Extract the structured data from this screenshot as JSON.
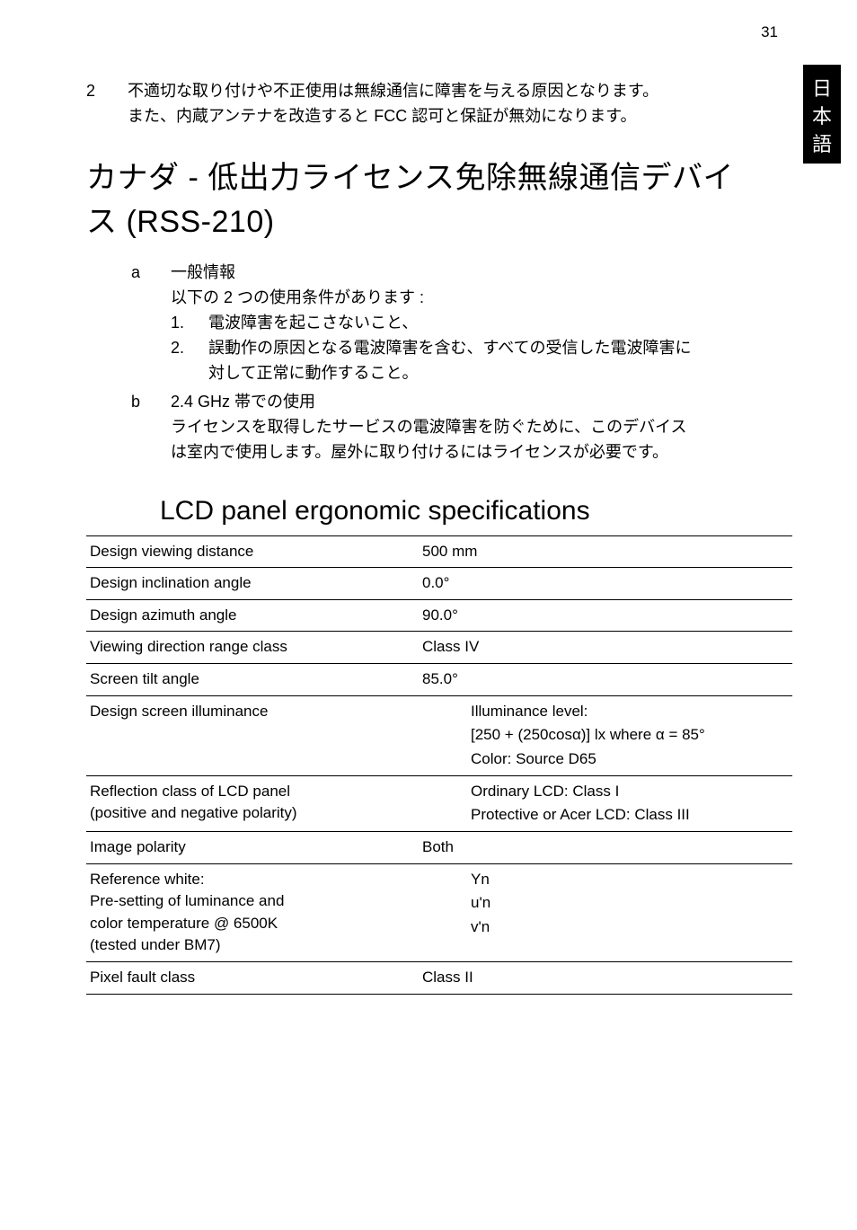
{
  "page_number": "31",
  "side_tab": "日本語",
  "intro_item": {
    "num": "2",
    "text_line1": "不適切な取り付けや不正使用は無線通信に障害を与える原因となります。",
    "text_line2": "また、内蔵アンテナを改造すると FCC 認可と保証が無効になります。"
  },
  "h1_line1": "カナダ - 低出力ライセンス免除無線通信デバイ",
  "h1_line2": "ス (RSS-210)",
  "letter_a": {
    "letter": "a",
    "title": "一般情報",
    "intro": "以下の 2 つの使用条件があります :",
    "item1_num": "1.",
    "item1_text": "電波障害を起こさないこと、",
    "item2_num": "2.",
    "item2_text_l1": "誤動作の原因となる電波障害を含む、すべての受信した電波障害に",
    "item2_text_l2": "対して正常に動作すること。"
  },
  "letter_b": {
    "letter": "b",
    "title": "2.4 GHz 帯での使用",
    "line1": "ライセンスを取得したサービスの電波障害を防ぐために、このデバイス",
    "line2": "は室内で使用します。屋外に取り付けるにはライセンスが必要です。"
  },
  "h2": "LCD panel ergonomic specifications",
  "table": {
    "rows": [
      {
        "label": "Design viewing distance",
        "value": "500 mm"
      },
      {
        "label": "Design inclination angle",
        "value": "0.0°"
      },
      {
        "label": "Design azimuth angle",
        "value": "90.0°"
      },
      {
        "label": "Viewing direction range class",
        "value": "Class IV"
      },
      {
        "label": "Screen tilt angle",
        "value": "85.0°"
      }
    ],
    "illum": {
      "label": "Design screen illuminance",
      "v1": "Illuminance level:",
      "v2": "[250 + (250cosα)] lx where α = 85°",
      "v3": "Color: Source D65"
    },
    "refl": {
      "label1": "Reflection class of LCD panel",
      "label2": "(positive and negative polarity)",
      "v1": "Ordinary LCD: Class I",
      "v2": "Protective or Acer LCD: Class III"
    },
    "imgpol": {
      "label": "Image polarity",
      "value": "Both"
    },
    "refwhite": {
      "l1": "Reference white:",
      "l2": "Pre-setting of luminance and",
      "l3": "color temperature @ 6500K",
      "l4": "(tested under BM7)",
      "v1": "Yn",
      "v2": "u'n",
      "v3": "v'n"
    },
    "pixel": {
      "label": "Pixel fault class",
      "value": "Class II"
    }
  }
}
